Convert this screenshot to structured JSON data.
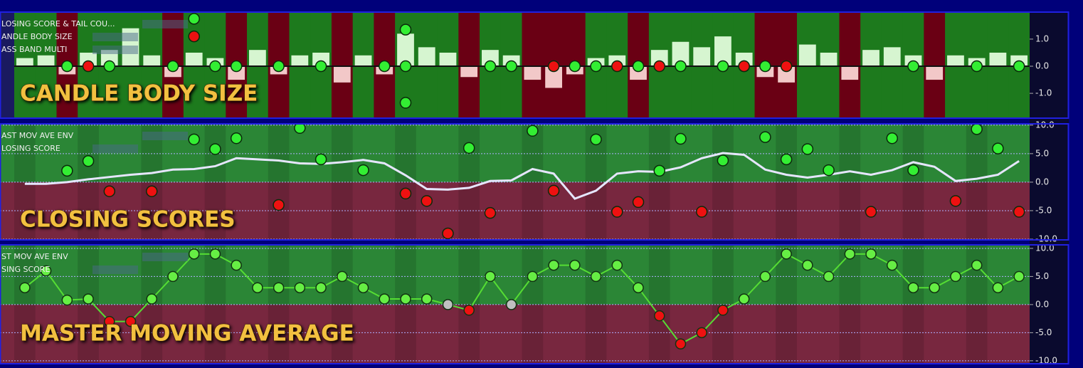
{
  "panels": [
    {
      "title": "CANDLE BODY SIZE",
      "indicators": [
        "LOSING SCORE & TAIL COU...",
        "ANDLE BODY SIZE",
        "ASS BAND MULTI"
      ],
      "ylim": [
        -1.89,
        1.97
      ],
      "yticks": [
        {
          "value": 1,
          "label": "1.0"
        },
        {
          "value": 0,
          "label": "0.0"
        },
        {
          "value": -1,
          "label": "-1.0"
        }
      ],
      "bars": [
        0.3,
        0.4,
        -0.3,
        0.5,
        0.6,
        1.4,
        0.4,
        -0.4,
        0.5,
        0.3,
        -0.5,
        0.6,
        -0.3,
        0.4,
        0.5,
        -0.6,
        0.4,
        -0.3,
        1.2,
        0.7,
        0.5,
        -0.4,
        0.6,
        0.4,
        -0.5,
        -0.8,
        -0.3,
        0.3,
        0.4,
        -0.5,
        0.6,
        0.9,
        0.7,
        1.1,
        0.5,
        -0.4,
        -0.6,
        0.8,
        0.5,
        -0.5,
        0.6,
        0.7,
        0.4,
        -0.5,
        0.4,
        0.3,
        0.5,
        0.4
      ],
      "series": [
        {
          "color": "#33ee33",
          "x": [
            2,
            4,
            7,
            8,
            9,
            10,
            12,
            14,
            17,
            18,
            18,
            18,
            22,
            23,
            26,
            27,
            29,
            31,
            33,
            34,
            35,
            42,
            45,
            47
          ],
          "y": [
            0,
            0,
            0,
            1.75,
            0,
            0,
            0,
            0,
            0,
            1.35,
            0,
            -1.35,
            0,
            0,
            0,
            0,
            0,
            0,
            0,
            0,
            0,
            0,
            0,
            0
          ]
        },
        {
          "color": "#ee1111",
          "x": [
            3,
            8,
            25,
            28,
            30,
            34,
            36
          ],
          "y": [
            0,
            1.1,
            0,
            0,
            0,
            0,
            0
          ]
        }
      ]
    },
    {
      "title": "CLOSING SCORES",
      "indicators": [
        "AST MOV AVE ENV",
        "LOSING SCORE"
      ],
      "ylim": [
        -10,
        10.1
      ],
      "yticks": [
        {
          "value": 10,
          "label": "10.0"
        },
        {
          "value": 5,
          "label": "5.0"
        },
        {
          "value": 0,
          "label": "0.0"
        },
        {
          "value": -5,
          "label": "-5.0"
        },
        {
          "value": -10,
          "label": "-10.0"
        }
      ],
      "line": [
        -0.3,
        -0.3,
        0,
        0.5,
        0.9,
        1.3,
        1.6,
        2.2,
        2.3,
        2.8,
        4.2,
        4,
        3.8,
        3.3,
        3.2,
        3.5,
        3.9,
        3.3,
        1.2,
        -1.2,
        -1.3,
        -1,
        0.2,
        0.3,
        2.3,
        1.5,
        -2.9,
        -1.5,
        1.5,
        1.9,
        1.8,
        2.6,
        4.2,
        5.1,
        4.8,
        2.2,
        1.3,
        0.8,
        1.3,
        1.9,
        1.3,
        2.1,
        3.5,
        2.7,
        0.2,
        0.6,
        1.3,
        3.7
      ],
      "series": [
        {
          "color": "#33ee33",
          "x": [
            2,
            3,
            8,
            9,
            10,
            13,
            14,
            16,
            21,
            24,
            27,
            30,
            31,
            33,
            35,
            36,
            37,
            38,
            41,
            42,
            45,
            46
          ],
          "y": [
            2,
            3.7,
            7.5,
            5.8,
            7.7,
            9.5,
            4,
            2.1,
            6,
            9,
            7.5,
            2,
            7.6,
            3.8,
            7.9,
            4,
            5.8,
            2.1,
            7.7,
            2.1,
            9.3,
            5.9
          ]
        },
        {
          "color": "#ee1111",
          "x": [
            4,
            6,
            12,
            18,
            19,
            20,
            22,
            25,
            28,
            29,
            32,
            40,
            44,
            47
          ],
          "y": [
            -1.6,
            -1.6,
            -4,
            -2,
            -3.3,
            -9,
            -5.4,
            -1.5,
            -5.2,
            -3.5,
            -5.2,
            -5.2,
            -3.3,
            -5.2
          ]
        }
      ]
    },
    {
      "title": "MASTER MOVING AVERAGE",
      "indicators": [
        "ST MOV AVE ENV",
        "SING SCORE"
      ],
      "ylim": [
        -10.4,
        10.5
      ],
      "yticks": [
        {
          "value": 10,
          "label": "10.0"
        },
        {
          "value": 5,
          "label": "5.0"
        },
        {
          "value": 0,
          "label": "0.0"
        },
        {
          "value": -5,
          "label": "-5.0"
        },
        {
          "value": -10,
          "label": "-10.0"
        }
      ],
      "line": [
        3,
        6,
        0.8,
        1,
        -3,
        -3,
        1,
        5,
        9,
        9,
        7,
        3,
        3,
        3,
        3,
        5,
        3,
        1,
        1,
        1,
        0,
        -1,
        5,
        0,
        5,
        7,
        7,
        5,
        7,
        3,
        -2,
        -7,
        -5,
        -1,
        1,
        5,
        9,
        7,
        5,
        9,
        9,
        7,
        3,
        3,
        5,
        7,
        3,
        5
      ]
    }
  ]
}
